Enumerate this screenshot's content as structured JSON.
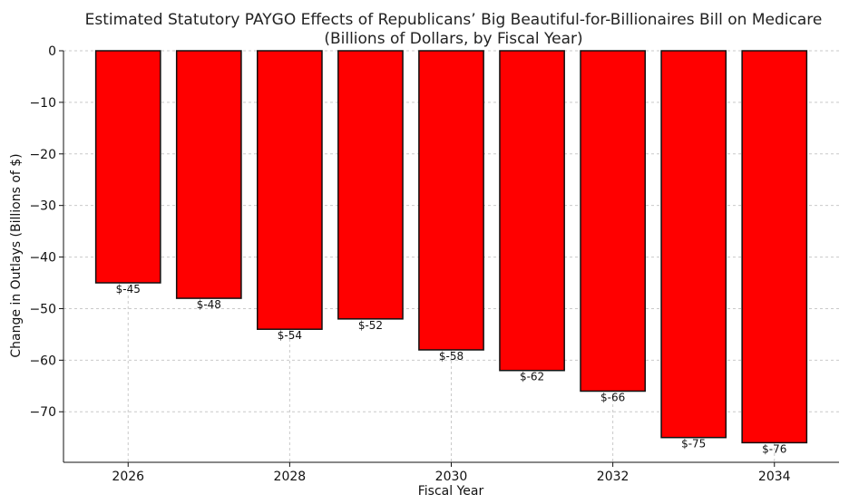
{
  "chart_data": {
    "type": "bar",
    "title": "Estimated Statutory PAYGO Effects of Republicans’ Big Beautiful-for-Billionaires Bill on Medicare",
    "subtitle": "(Billions of Dollars, by Fiscal Year)",
    "xlabel": "Fiscal Year",
    "ylabel": "Change in Outlays (Billions of $)",
    "categories": [
      "2026",
      "2027",
      "2028",
      "2029",
      "2030",
      "2031",
      "2032",
      "2033",
      "2034"
    ],
    "values": [
      -45,
      -48,
      -54,
      -52,
      -58,
      -62,
      -66,
      -75,
      -76
    ],
    "data_labels": [
      "$-45",
      "$-48",
      "$-54",
      "$-52",
      "$-58",
      "$-62",
      "$-66",
      "$-75",
      "$-76"
    ],
    "x_ticks": [
      "2026",
      "2028",
      "2030",
      "2032",
      "2034"
    ],
    "x_tick_values": [
      2026,
      2028,
      2030,
      2032,
      2034
    ],
    "y_ticks": [
      0,
      -10,
      -20,
      -30,
      -40,
      -50,
      -60,
      -70
    ],
    "y_tick_labels": [
      "0",
      "−10",
      "−20",
      "−30",
      "−40",
      "−50",
      "−60",
      "−70"
    ],
    "xlim": [
      2025.2,
      2034.8
    ],
    "ylim": [
      -79.8,
      0
    ],
    "grid": true,
    "bar_color": "#ff0000",
    "bar_edge_color": "#111111"
  }
}
